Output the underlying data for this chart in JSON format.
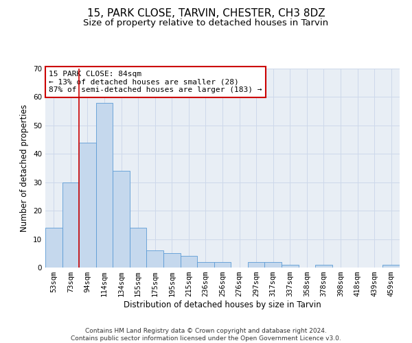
{
  "title": "15, PARK CLOSE, TARVIN, CHESTER, CH3 8DZ",
  "subtitle": "Size of property relative to detached houses in Tarvin",
  "xlabel": "Distribution of detached houses by size in Tarvin",
  "ylabel": "Number of detached properties",
  "categories": [
    "53sqm",
    "73sqm",
    "94sqm",
    "114sqm",
    "134sqm",
    "155sqm",
    "175sqm",
    "195sqm",
    "215sqm",
    "236sqm",
    "256sqm",
    "276sqm",
    "297sqm",
    "317sqm",
    "337sqm",
    "358sqm",
    "378sqm",
    "398sqm",
    "418sqm",
    "439sqm",
    "459sqm"
  ],
  "bar_heights": [
    14,
    30,
    44,
    58,
    34,
    14,
    6,
    5,
    4,
    2,
    2,
    0,
    2,
    2,
    1,
    0,
    1,
    0,
    0,
    0,
    1
  ],
  "bar_color": "#c5d8ed",
  "bar_edge_color": "#5b9bd5",
  "grid_color": "#cdd8ea",
  "bg_color": "#e8eef5",
  "vline_x_index": 1.5,
  "vline_color": "#cc0000",
  "annotation_line1": "15 PARK CLOSE: 84sqm",
  "annotation_line2": "← 13% of detached houses are smaller (28)",
  "annotation_line3": "87% of semi-detached houses are larger (183) →",
  "annotation_box_color": "#ffffff",
  "annotation_box_edge": "#cc0000",
  "ylim": [
    0,
    70
  ],
  "yticks": [
    0,
    10,
    20,
    30,
    40,
    50,
    60,
    70
  ],
  "footer": "Contains HM Land Registry data © Crown copyright and database right 2024.\nContains public sector information licensed under the Open Government Licence v3.0.",
  "title_fontsize": 11,
  "subtitle_fontsize": 9.5,
  "xlabel_fontsize": 8.5,
  "ylabel_fontsize": 8.5,
  "tick_fontsize": 7.5,
  "annotation_fontsize": 8,
  "footer_fontsize": 6.5
}
